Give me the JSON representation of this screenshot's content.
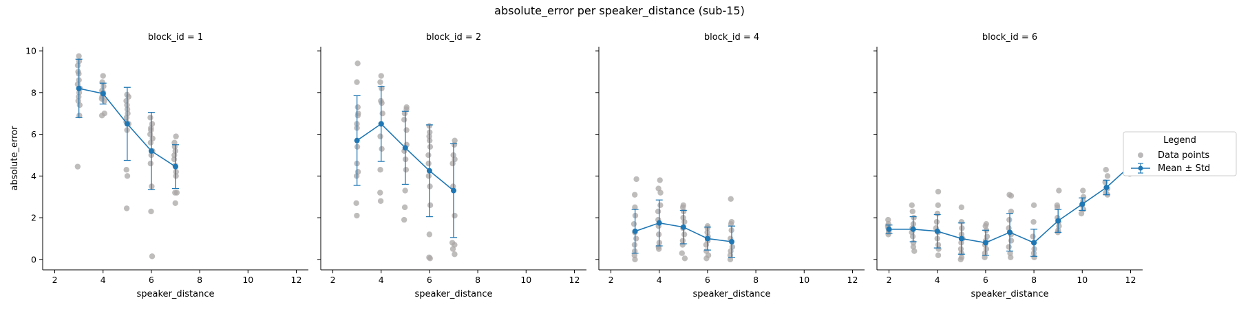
{
  "suptitle": "absolute_error per speaker_distance (sub-15)",
  "legend": {
    "title": "Legend",
    "items": [
      "Data points",
      "Mean ± Std"
    ],
    "placement": "right"
  },
  "colors": {
    "points": "#a9a6a6",
    "mean": "#1f77b4"
  },
  "chart_data": [
    {
      "type": "scatter",
      "title": "block_id = 1",
      "xlabel": "speaker_distance",
      "ylabel": "absolute_error",
      "xlim": [
        1.5,
        12.5
      ],
      "ylim": [
        -0.5,
        10.2
      ],
      "xticks": [
        2,
        4,
        6,
        8,
        10,
        12
      ],
      "yticks": [
        0,
        2,
        4,
        6,
        8,
        10
      ],
      "points": [
        {
          "x": 3,
          "y": [
            9.75,
            9.5,
            9.3,
            9.0,
            8.9,
            8.6,
            8.4,
            8.2,
            8.0,
            7.8,
            7.6,
            7.4,
            6.9,
            4.45
          ]
        },
        {
          "x": 4,
          "y": [
            8.8,
            8.5,
            8.3,
            8.1,
            8.0,
            7.9,
            7.8,
            7.7,
            7.6,
            7.0,
            6.9
          ]
        },
        {
          "x": 5,
          "y": [
            7.9,
            7.8,
            7.6,
            7.4,
            7.2,
            7.0,
            6.8,
            6.6,
            6.5,
            6.2,
            4.3,
            4.0,
            2.45
          ]
        },
        {
          "x": 6,
          "y": [
            6.8,
            6.5,
            6.3,
            6.2,
            6.0,
            5.8,
            5.6,
            5.2,
            5.0,
            4.6,
            3.5,
            2.3,
            0.15
          ]
        },
        {
          "x": 7,
          "y": [
            5.9,
            5.6,
            5.4,
            5.2,
            5.0,
            4.8,
            4.5,
            4.2,
            4.0,
            3.2,
            3.2,
            2.7
          ]
        }
      ],
      "mean_std": [
        {
          "x": 3,
          "mean": 8.2,
          "std": 1.4
        },
        {
          "x": 4,
          "mean": 7.95,
          "std": 0.5
        },
        {
          "x": 5,
          "mean": 6.5,
          "std": 1.75
        },
        {
          "x": 6,
          "mean": 5.2,
          "std": 1.85
        },
        {
          "x": 7,
          "mean": 4.45,
          "std": 1.05
        }
      ]
    },
    {
      "type": "scatter",
      "title": "block_id = 2",
      "xlabel": "speaker_distance",
      "ylabel": "",
      "xlim": [
        1.5,
        12.5
      ],
      "ylim": [
        -0.5,
        10.2
      ],
      "xticks": [
        2,
        4,
        6,
        8,
        10,
        12
      ],
      "yticks": [
        0,
        2,
        4,
        6,
        8,
        10
      ],
      "points": [
        {
          "x": 3,
          "y": [
            9.4,
            8.5,
            7.3,
            7.0,
            6.9,
            6.5,
            6.3,
            5.4,
            4.6,
            4.2,
            4.0,
            2.7,
            2.1
          ]
        },
        {
          "x": 4,
          "y": [
            8.8,
            8.5,
            8.2,
            7.6,
            7.5,
            7.0,
            6.5,
            5.9,
            5.3,
            4.3,
            3.2,
            2.8
          ]
        },
        {
          "x": 5,
          "y": [
            7.3,
            7.2,
            7.0,
            6.7,
            6.2,
            5.5,
            5.2,
            4.8,
            4.3,
            3.3,
            2.5,
            1.9
          ]
        },
        {
          "x": 6,
          "y": [
            6.4,
            6.1,
            5.9,
            5.7,
            5.4,
            5.0,
            4.6,
            4.0,
            3.5,
            2.6,
            1.2,
            0.1,
            0.05
          ]
        },
        {
          "x": 7,
          "y": [
            5.7,
            5.5,
            5.0,
            4.8,
            4.6,
            3.5,
            2.1,
            0.8,
            0.7,
            0.5,
            0.25
          ]
        }
      ],
      "mean_std": [
        {
          "x": 3,
          "mean": 5.7,
          "std": 2.15
        },
        {
          "x": 4,
          "mean": 6.5,
          "std": 1.8
        },
        {
          "x": 5,
          "mean": 5.35,
          "std": 1.75
        },
        {
          "x": 6,
          "mean": 4.25,
          "std": 2.2
        },
        {
          "x": 7,
          "mean": 3.3,
          "std": 2.25
        }
      ]
    },
    {
      "type": "scatter",
      "title": "block_id = 4",
      "xlabel": "speaker_distance",
      "ylabel": "",
      "xlim": [
        1.5,
        12.5
      ],
      "ylim": [
        -0.5,
        10.2
      ],
      "xticks": [
        2,
        4,
        6,
        8,
        10,
        12
      ],
      "yticks": [
        0,
        2,
        4,
        6,
        8,
        10
      ],
      "points": [
        {
          "x": 3,
          "y": [
            3.85,
            3.1,
            2.5,
            2.1,
            1.7,
            1.3,
            1.0,
            0.7,
            0.4,
            0.2,
            0.0
          ]
        },
        {
          "x": 4,
          "y": [
            3.8,
            3.4,
            3.2,
            2.6,
            2.3,
            1.9,
            1.6,
            1.2,
            0.8,
            0.6,
            0.5
          ]
        },
        {
          "x": 5,
          "y": [
            2.6,
            2.5,
            2.3,
            2.0,
            1.8,
            1.5,
            1.2,
            0.9,
            0.7,
            0.3,
            0.05
          ]
        },
        {
          "x": 6,
          "y": [
            1.6,
            1.5,
            1.3,
            1.1,
            0.9,
            0.7,
            0.4,
            0.2,
            0.05
          ]
        },
        {
          "x": 7,
          "y": [
            2.9,
            1.8,
            1.7,
            1.4,
            1.0,
            0.6,
            0.4,
            0.2,
            0.0
          ]
        }
      ],
      "mean_std": [
        {
          "x": 3,
          "mean": 1.35,
          "std": 1.05
        },
        {
          "x": 4,
          "mean": 1.75,
          "std": 1.1
        },
        {
          "x": 5,
          "mean": 1.55,
          "std": 0.8
        },
        {
          "x": 6,
          "mean": 1.0,
          "std": 0.55
        },
        {
          "x": 7,
          "mean": 0.85,
          "std": 0.75
        }
      ]
    },
    {
      "type": "scatter",
      "title": "block_id = 6",
      "xlabel": "speaker_distance",
      "ylabel": "",
      "xlim": [
        1.5,
        12.5
      ],
      "ylim": [
        -0.5,
        10.2
      ],
      "xticks": [
        2,
        4,
        6,
        8,
        10,
        12
      ],
      "yticks": [
        0,
        2,
        4,
        6,
        8,
        10
      ],
      "points": [
        {
          "x": 2,
          "y": [
            1.9,
            1.7,
            1.6,
            1.5,
            1.4,
            1.3,
            1.2
          ]
        },
        {
          "x": 3,
          "y": [
            2.6,
            2.3,
            2.0,
            1.7,
            1.5,
            1.3,
            1.1,
            0.8,
            0.6,
            0.4
          ]
        },
        {
          "x": 4,
          "y": [
            3.25,
            2.6,
            2.2,
            1.8,
            1.5,
            1.3,
            1.0,
            0.7,
            0.5,
            0.2
          ]
        },
        {
          "x": 5,
          "y": [
            2.5,
            1.8,
            1.5,
            1.2,
            1.0,
            0.8,
            0.5,
            0.3,
            0.1,
            0.0
          ]
        },
        {
          "x": 6,
          "y": [
            1.7,
            1.6,
            1.4,
            1.1,
            0.9,
            0.7,
            0.5,
            0.3,
            0.1
          ]
        },
        {
          "x": 7,
          "y": [
            3.1,
            3.05,
            2.3,
            1.9,
            1.5,
            1.2,
            0.9,
            0.6,
            0.3,
            0.1
          ]
        },
        {
          "x": 8,
          "y": [
            2.6,
            1.8,
            1.1,
            0.8,
            0.5,
            0.3,
            0.1
          ]
        },
        {
          "x": 9,
          "y": [
            3.3,
            2.6,
            2.5,
            2.0,
            1.8,
            1.6,
            1.4,
            1.3
          ]
        },
        {
          "x": 10,
          "y": [
            3.3,
            3.0,
            2.8,
            2.6,
            2.4,
            2.2
          ]
        },
        {
          "x": 11,
          "y": [
            4.3,
            4.0,
            3.7,
            3.4,
            3.2,
            3.1
          ]
        },
        {
          "x": 12,
          "y": [
            5.3,
            5.0,
            4.8,
            4.6,
            4.4,
            4.2,
            4.1
          ]
        }
      ],
      "mean_std": [
        {
          "x": 2,
          "mean": 1.45,
          "std": 0.2
        },
        {
          "x": 3,
          "mean": 1.45,
          "std": 0.6
        },
        {
          "x": 4,
          "mean": 1.35,
          "std": 0.8
        },
        {
          "x": 5,
          "mean": 1.0,
          "std": 0.75
        },
        {
          "x": 6,
          "mean": 0.8,
          "std": 0.6
        },
        {
          "x": 7,
          "mean": 1.3,
          "std": 0.9
        },
        {
          "x": 8,
          "mean": 0.8,
          "std": 0.65
        },
        {
          "x": 9,
          "mean": 1.85,
          "std": 0.55
        },
        {
          "x": 10,
          "mean": 2.65,
          "std": 0.3
        },
        {
          "x": 11,
          "mean": 3.45,
          "std": 0.35
        },
        {
          "x": 12,
          "mean": 4.5,
          "std": 0.35
        }
      ]
    }
  ]
}
